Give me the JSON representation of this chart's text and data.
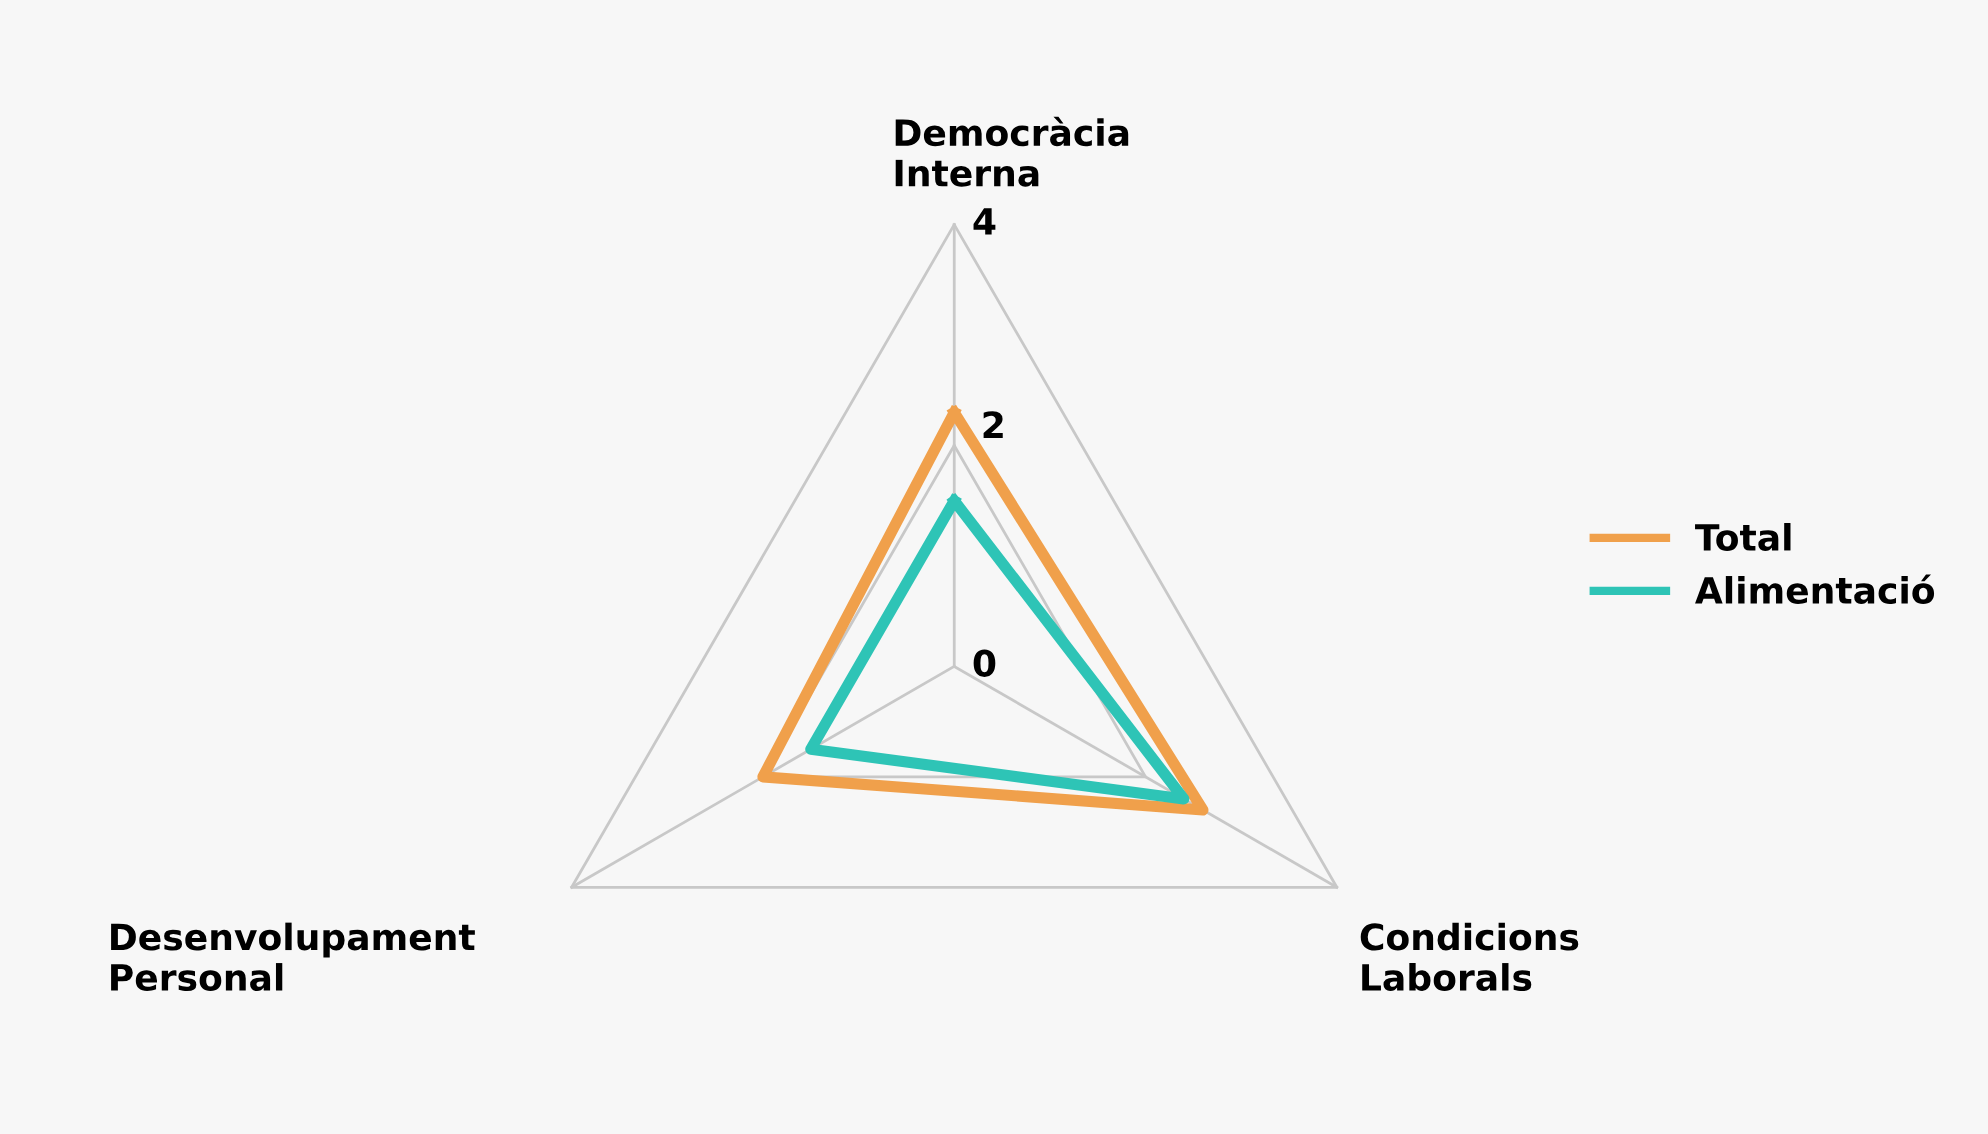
{
  "chart_data": {
    "type": "radar",
    "categories": [
      "Democràcia\nInterna",
      "Condicions\nLaborals",
      "Desenvolupament\nPersonal"
    ],
    "series": [
      {
        "name": "Total",
        "color": "#f0a04b",
        "values": [
          2.3,
          2.6,
          2.0
        ]
      },
      {
        "name": "Alimentació",
        "color": "#2ec4b6",
        "values": [
          1.5,
          2.4,
          1.5
        ]
      }
    ],
    "ylim": [
      0,
      4
    ],
    "yticks": [
      0,
      2,
      4
    ],
    "grid": true,
    "legend": "right"
  }
}
